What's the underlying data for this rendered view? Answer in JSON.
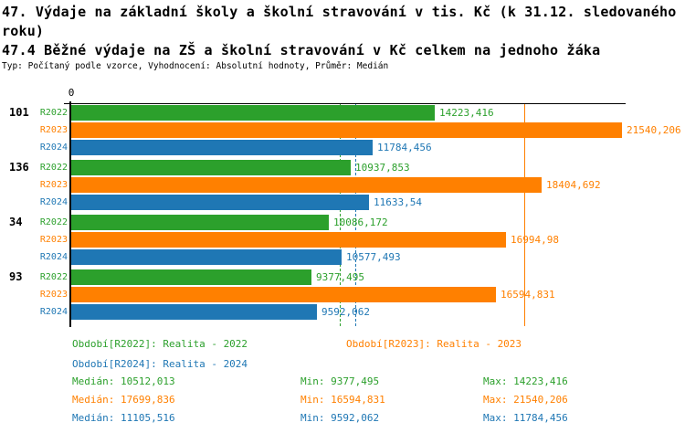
{
  "header": {
    "title_line1": "47. Výdaje na základní školy a školní stravování v tis. Kč (k 31.12. sledovaného",
    "title_line2": "roku)",
    "subtitle": "47.4 Běžné výdaje na ZŠ a školní stravování v Kč celkem na jednoho žáka",
    "meta": "Typ: Počítaný podle vzorce, Vyhodnocení: Absolutní hodnoty, Průměr: Medián"
  },
  "chart_data": {
    "type": "bar",
    "orientation": "horizontal",
    "grid": false,
    "x_axis": {
      "zero_label": "0",
      "xlim": [
        0,
        21680
      ]
    },
    "series": [
      "R2022",
      "R2023",
      "R2024"
    ],
    "series_colors": {
      "R2022": "#2ca02c",
      "R2023": "#ff8000",
      "R2024": "#1f77b4"
    },
    "groups": [
      {
        "category": "101",
        "bars": [
          {
            "series": "R2022",
            "value": 14223.416,
            "label": "14223,416"
          },
          {
            "series": "R2023",
            "value": 21540.206,
            "label": "21540,206"
          },
          {
            "series": "R2024",
            "value": 11784.456,
            "label": "11784,456"
          }
        ]
      },
      {
        "category": "136",
        "bars": [
          {
            "series": "R2022",
            "value": 10937.853,
            "label": "10937,853"
          },
          {
            "series": "R2023",
            "value": 18404.692,
            "label": "18404,692"
          },
          {
            "series": "R2024",
            "value": 11633.54,
            "label": "11633,54"
          }
        ]
      },
      {
        "category": "34",
        "bars": [
          {
            "series": "R2022",
            "value": 10086.172,
            "label": "10086,172"
          },
          {
            "series": "R2023",
            "value": 16994.98,
            "label": "16994,98"
          },
          {
            "series": "R2024",
            "value": 10577.493,
            "label": "10577,493"
          }
        ]
      },
      {
        "category": "93",
        "bars": [
          {
            "series": "R2022",
            "value": 9377.495,
            "label": "9377,495"
          },
          {
            "series": "R2023",
            "value": 16594.831,
            "label": "16594,831"
          },
          {
            "series": "R2024",
            "value": 9592.062,
            "label": "9592,062"
          }
        ]
      }
    ],
    "median_lines": [
      {
        "series": "R2022",
        "value": 10512.013,
        "style": "dashed",
        "color": "#2ca02c"
      },
      {
        "series": "R2023",
        "value": 17699.836,
        "style": "solid",
        "color": "#ff8000"
      },
      {
        "series": "R2024",
        "value": 11105.516,
        "style": "dashed",
        "color": "#1f77b4"
      }
    ]
  },
  "legend": {
    "periods": [
      {
        "series": "R2022",
        "text": "Období[R2022]: Realita - 2022"
      },
      {
        "series": "R2023",
        "text": "Období[R2023]: Realita - 2023"
      },
      {
        "series": "R2024",
        "text": "Období[R2024]: Realita - 2024"
      }
    ],
    "stats": [
      {
        "series": "R2022",
        "median": "Medián: 10512,013",
        "min": "Min: 9377,495",
        "max": "Max: 14223,416"
      },
      {
        "series": "R2023",
        "median": "Medián: 17699,836",
        "min": "Min: 16594,831",
        "max": "Max: 21540,206"
      },
      {
        "series": "R2024",
        "median": "Medián: 11105,516",
        "min": "Min: 9592,062",
        "max": "Max: 11784,456"
      }
    ]
  }
}
